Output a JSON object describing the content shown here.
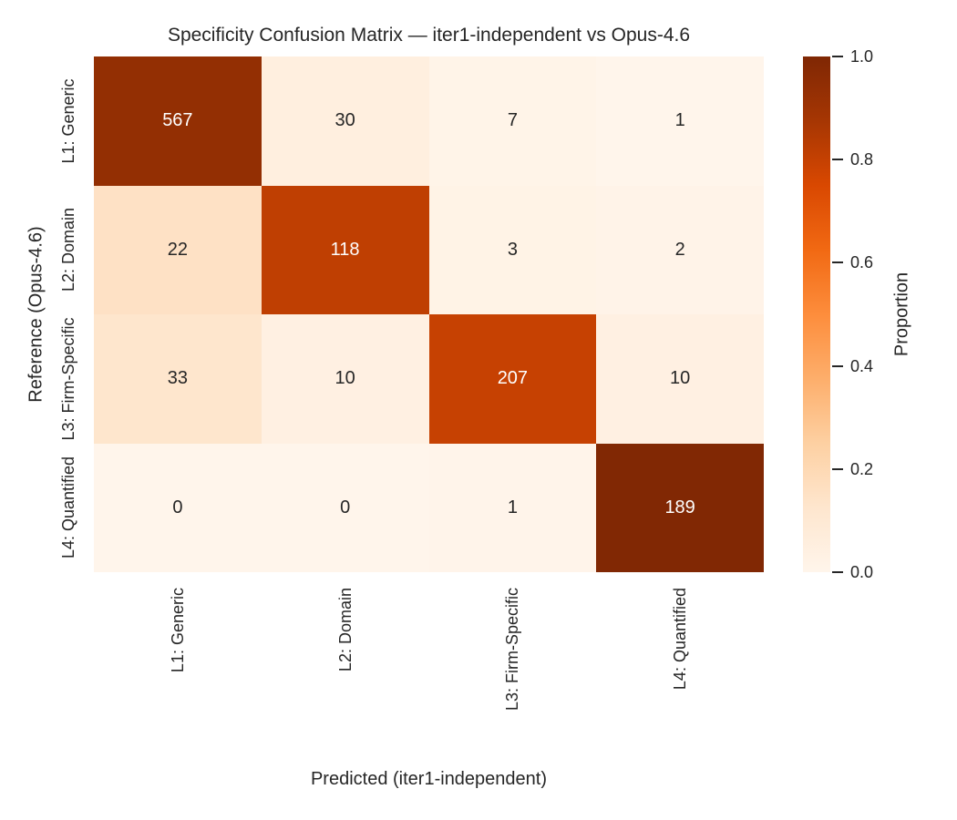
{
  "chart_data": {
    "type": "heatmap",
    "title": "Specificity Confusion Matrix — iter1-independent vs Opus-4.6",
    "xlabel": "Predicted (iter1-independent)",
    "ylabel": "Reference (Opus-4.6)",
    "x_tick_labels": [
      "L1: Generic",
      "L2: Domain",
      "L3: Firm-Specific",
      "L4: Quantified"
    ],
    "y_tick_labels": [
      "L1: Generic",
      "L2: Domain",
      "L3: Firm-Specific",
      "L4: Quantified"
    ],
    "matrix": [
      [
        567,
        30,
        7,
        1
      ],
      [
        22,
        118,
        3,
        2
      ],
      [
        33,
        10,
        207,
        10
      ],
      [
        0,
        0,
        1,
        189
      ]
    ],
    "normalization": "row-proportion",
    "colormap": "Oranges",
    "colorbar": {
      "label": "Proportion",
      "ticks": [
        "0.0",
        "0.2",
        "0.4",
        "0.6",
        "0.8",
        "1.0"
      ],
      "range": [
        0,
        1
      ]
    }
  },
  "colors": {
    "background": "#ffffff",
    "text": "#262626",
    "annotation_light": "#ffffff",
    "cmap_stops": [
      "#fff5eb",
      "#fee6ce",
      "#fdd0a2",
      "#fdae6b",
      "#fd8d3c",
      "#f16913",
      "#d94801",
      "#a63603",
      "#7f2704"
    ]
  }
}
